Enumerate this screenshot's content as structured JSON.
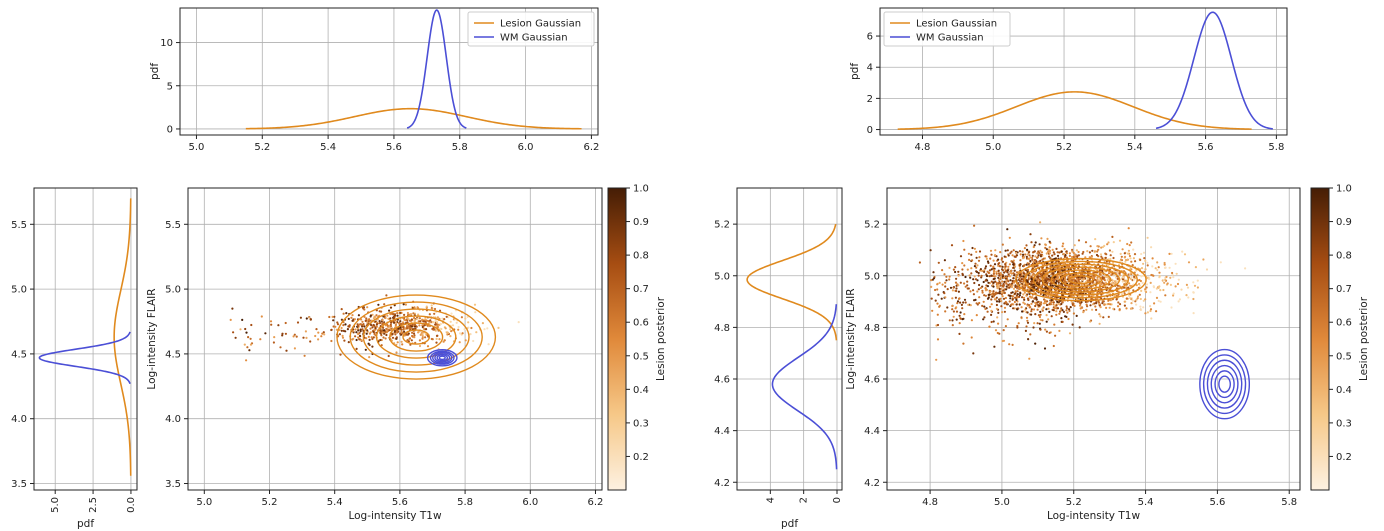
{
  "colors": {
    "lesion": "#e08a1e",
    "wm": "#4b4fd6",
    "grid": "#b0b0b0"
  },
  "chart_data": [
    {
      "id": "L",
      "type": "line",
      "role": "top",
      "xlim": [
        4.95,
        6.22
      ],
      "ylim": [
        -0.7,
        14
      ],
      "xticks": [
        5.0,
        5.2,
        5.4,
        5.6,
        5.8,
        6.0,
        6.2
      ],
      "xtick_labels": [
        "5.0",
        "5.2",
        "5.4",
        "5.6",
        "5.8",
        "6.0",
        "6.2"
      ],
      "yticks": [
        0,
        5,
        10
      ],
      "ytick_labels": [
        "0",
        "5",
        "10"
      ],
      "ylabel": "pdf",
      "xlabel": "",
      "legend": "top-right",
      "grid": true,
      "series": [
        {
          "name": "Lesion Gaussian",
          "color": "lesion",
          "kind": "gauss",
          "mu": 5.65,
          "sigma": 0.17,
          "x_range": [
            5.15,
            6.17
          ]
        },
        {
          "name": "WM Gaussian",
          "color": "wm",
          "kind": "gauss",
          "mu": 5.73,
          "sigma": 0.029,
          "x_range": [
            5.64,
            5.82
          ]
        }
      ]
    },
    {
      "id": "L",
      "type": "line",
      "role": "side",
      "xlim": [
        6.4,
        -0.4
      ],
      "ylim": [
        3.45,
        5.78
      ],
      "xticks": [
        5.0,
        2.5,
        0.0
      ],
      "xtick_labels": [
        "5.0",
        "2.5",
        "0.0"
      ],
      "yticks": [
        3.5,
        4.0,
        4.5,
        5.0,
        5.5
      ],
      "ytick_labels": [
        "3.5",
        "4.0",
        "4.5",
        "5.0",
        "5.5"
      ],
      "xlabel": "pdf",
      "ylabel": "",
      "grid": true,
      "series": [
        {
          "name": "Lesion Gaussian",
          "color": "lesion",
          "kind": "gauss",
          "mu": 4.63,
          "sigma": 0.36,
          "y_range": [
            3.56,
            5.7
          ]
        },
        {
          "name": "WM Gaussian",
          "color": "wm",
          "kind": "gauss",
          "mu": 4.47,
          "sigma": 0.066,
          "y_range": [
            4.27,
            4.67
          ]
        }
      ]
    },
    {
      "id": "L",
      "type": "scatter",
      "role": "main",
      "xlim": [
        4.95,
        6.22
      ],
      "ylim": [
        3.45,
        5.78
      ],
      "xticks": [
        5.0,
        5.2,
        5.4,
        5.6,
        5.8,
        6.0,
        6.2
      ],
      "xtick_labels": [
        "5.0",
        "5.2",
        "5.4",
        "5.6",
        "5.8",
        "6.0",
        "6.2"
      ],
      "yticks": [
        3.5,
        4.0,
        4.5,
        5.0,
        5.5
      ],
      "ytick_labels": [
        "3.5",
        "4.0",
        "4.5",
        "5.0",
        "5.5"
      ],
      "xlabel": "Log-intensity T1w",
      "ylabel": "Log-intensity FLAIR",
      "grid": true,
      "scatter": {
        "center": [
          5.6,
          4.72
        ],
        "spread": [
          0.1,
          0.07
        ],
        "n": 700,
        "tail_left": 5.08
      },
      "contours": [
        {
          "color": "lesion",
          "center": [
            5.65,
            4.63
          ],
          "radii": [
            0.27,
            0.36
          ],
          "levels": [
            0.15,
            0.3,
            0.45,
            0.6,
            0.75,
            0.9
          ]
        },
        {
          "color": "wm",
          "center": [
            5.73,
            4.47
          ],
          "radii": [
            0.045,
            0.062
          ],
          "levels": [
            0.2,
            0.35,
            0.5,
            0.65,
            0.8,
            1.0
          ]
        }
      ],
      "colorbar": {
        "label": "Lesion posterior",
        "range": [
          0.1,
          1.0
        ],
        "ticks": [
          0.2,
          0.3,
          0.4,
          0.5,
          0.6,
          0.7,
          0.8,
          0.9,
          1.0
        ],
        "tick_labels": [
          "0.2",
          "0.3",
          "0.4",
          "0.5",
          "0.6",
          "0.7",
          "0.8",
          "0.9",
          "1.0"
        ]
      }
    },
    {
      "id": "R",
      "type": "line",
      "role": "top",
      "xlim": [
        4.68,
        5.83
      ],
      "ylim": [
        -0.35,
        7.8
      ],
      "xticks": [
        4.8,
        5.0,
        5.2,
        5.4,
        5.6,
        5.8
      ],
      "xtick_labels": [
        "4.8",
        "5.0",
        "5.2",
        "5.4",
        "5.6",
        "5.8"
      ],
      "yticks": [
        0,
        2,
        4,
        6
      ],
      "ytick_labels": [
        "0",
        "2",
        "4",
        "6"
      ],
      "ylabel": "pdf",
      "xlabel": "",
      "legend": "top-left",
      "grid": true,
      "series": [
        {
          "name": "Lesion Gaussian",
          "color": "lesion",
          "kind": "gauss",
          "mu": 5.23,
          "sigma": 0.165,
          "x_range": [
            4.73,
            5.73
          ]
        },
        {
          "name": "WM Gaussian",
          "color": "wm",
          "kind": "gauss",
          "mu": 5.62,
          "sigma": 0.053,
          "x_range": [
            5.46,
            5.79
          ]
        }
      ]
    },
    {
      "id": "R",
      "type": "line",
      "role": "side",
      "xlim": [
        6.0,
        -0.3
      ],
      "ylim": [
        4.17,
        5.34
      ],
      "xticks": [
        4,
        2,
        0
      ],
      "xtick_labels": [
        "4",
        "2",
        "0"
      ],
      "yticks": [
        4.2,
        4.4,
        4.6,
        4.8,
        5.0,
        5.2
      ],
      "ytick_labels": [
        "4.2",
        "4.4",
        "4.6",
        "4.8",
        "5.0",
        "5.2"
      ],
      "xlabel": "pdf",
      "ylabel": "",
      "grid": true,
      "series": [
        {
          "name": "Lesion Gaussian",
          "color": "lesion",
          "kind": "gauss",
          "mu": 4.985,
          "sigma": 0.074,
          "y_range": [
            4.75,
            5.2
          ]
        },
        {
          "name": "WM Gaussian",
          "color": "wm",
          "kind": "gauss",
          "mu": 4.58,
          "sigma": 0.103,
          "y_range": [
            4.25,
            4.89
          ]
        }
      ]
    },
    {
      "id": "R",
      "type": "scatter",
      "role": "main",
      "xlim": [
        4.68,
        5.83
      ],
      "ylim": [
        4.17,
        5.34
      ],
      "xticks": [
        4.8,
        5.0,
        5.2,
        5.4,
        5.6,
        5.8
      ],
      "xtick_labels": [
        "4.8",
        "5.0",
        "5.2",
        "5.4",
        "5.6",
        "5.8"
      ],
      "yticks": [
        4.2,
        4.4,
        4.6,
        4.8,
        5.0,
        5.2
      ],
      "ytick_labels": [
        "4.2",
        "4.4",
        "4.6",
        "4.8",
        "5.0",
        "5.2"
      ],
      "xlabel": "Log-intensity T1w",
      "ylabel": "Log-intensity FLAIR",
      "grid": true,
      "scatter": {
        "center": [
          5.18,
          4.98
        ],
        "spread": [
          0.13,
          0.06
        ],
        "n": 2600,
        "tail_left": 4.8
      },
      "contours": [
        {
          "color": "lesion",
          "center": [
            5.22,
            4.985
          ],
          "radii": [
            0.165,
            0.074
          ],
          "levels": [
            0.2,
            0.35,
            0.5,
            0.65,
            0.8,
            0.95,
            1.1
          ]
        },
        {
          "color": "wm",
          "center": [
            5.62,
            4.58
          ],
          "radii": [
            0.053,
            0.103
          ],
          "levels": [
            0.3,
            0.5,
            0.7,
            0.9,
            1.1,
            1.3
          ]
        }
      ],
      "colorbar": {
        "label": "Lesion posterior",
        "range": [
          0.1,
          1.0
        ],
        "ticks": [
          0.2,
          0.3,
          0.4,
          0.5,
          0.6,
          0.7,
          0.8,
          0.9,
          1.0
        ],
        "tick_labels": [
          "0.2",
          "0.3",
          "0.4",
          "0.5",
          "0.6",
          "0.7",
          "0.8",
          "0.9",
          "1.0"
        ]
      }
    }
  ]
}
